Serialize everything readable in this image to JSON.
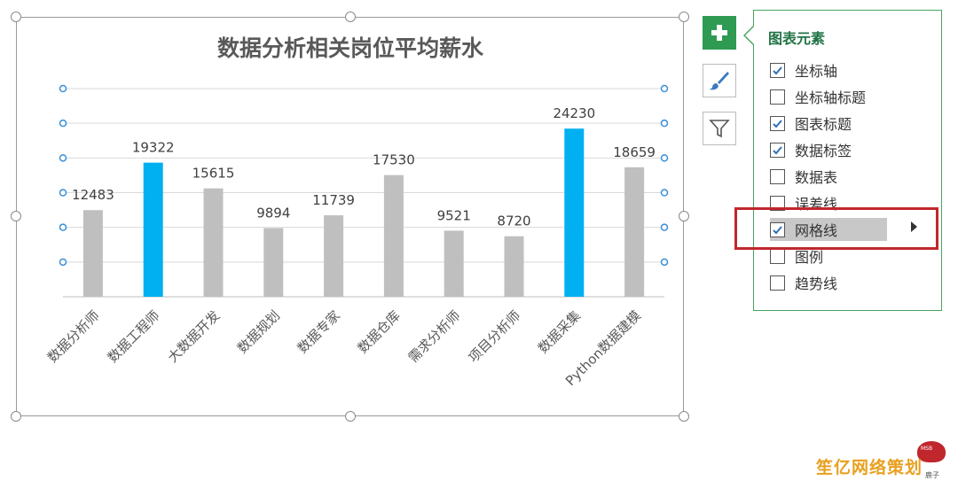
{
  "chart_data": {
    "type": "bar",
    "title": "数据分析相关岗位平均薪水",
    "categories": [
      "数据分析师",
      "数据工程师",
      "大数据开发",
      "数据规划",
      "数据专家",
      "数据仓库",
      "需求分析师",
      "项目分析师",
      "数据采集",
      "Python数据建模"
    ],
    "values": [
      12483,
      19322,
      15615,
      9894,
      11739,
      17530,
      9521,
      8720,
      24230,
      18659
    ],
    "data_labels": [
      "12483",
      "19322",
      "15615",
      "9894",
      "11739",
      "17530",
      "9521",
      "8720",
      "24230",
      "18659"
    ],
    "highlighted_categories": [
      "数据工程师",
      "数据采集"
    ],
    "colors": {
      "bar": "#bfbfbf",
      "highlight": "#00b0f0",
      "gridline": "#d9d9d9",
      "label": "#404040"
    },
    "ylim": [
      0,
      30000
    ],
    "gridlines": [
      0,
      5000,
      10000,
      15000,
      20000,
      25000,
      30000
    ],
    "gridlines_selected": true,
    "legend": "none"
  },
  "chart_elements_panel": {
    "title": "图表元素",
    "options": [
      {
        "label": "坐标轴",
        "checked": true
      },
      {
        "label": "坐标轴标题",
        "checked": false
      },
      {
        "label": "图表标题",
        "checked": true
      },
      {
        "label": "数据标签",
        "checked": true
      },
      {
        "label": "数据表",
        "checked": false
      },
      {
        "label": "误差线",
        "checked": false
      },
      {
        "label": "网格线",
        "checked": true,
        "selected": true
      },
      {
        "label": "图例",
        "checked": false
      },
      {
        "label": "趋势线",
        "checked": false
      }
    ]
  },
  "side_buttons": [
    {
      "name": "chart-elements-button",
      "icon": "plus-icon"
    },
    {
      "name": "chart-styles-button",
      "icon": "paintbrush-icon"
    },
    {
      "name": "chart-filters-button",
      "icon": "funnel-icon"
    }
  ],
  "watermark": {
    "text": "笙亿网络策划",
    "badge": "MSB",
    "small": "鹿子"
  }
}
